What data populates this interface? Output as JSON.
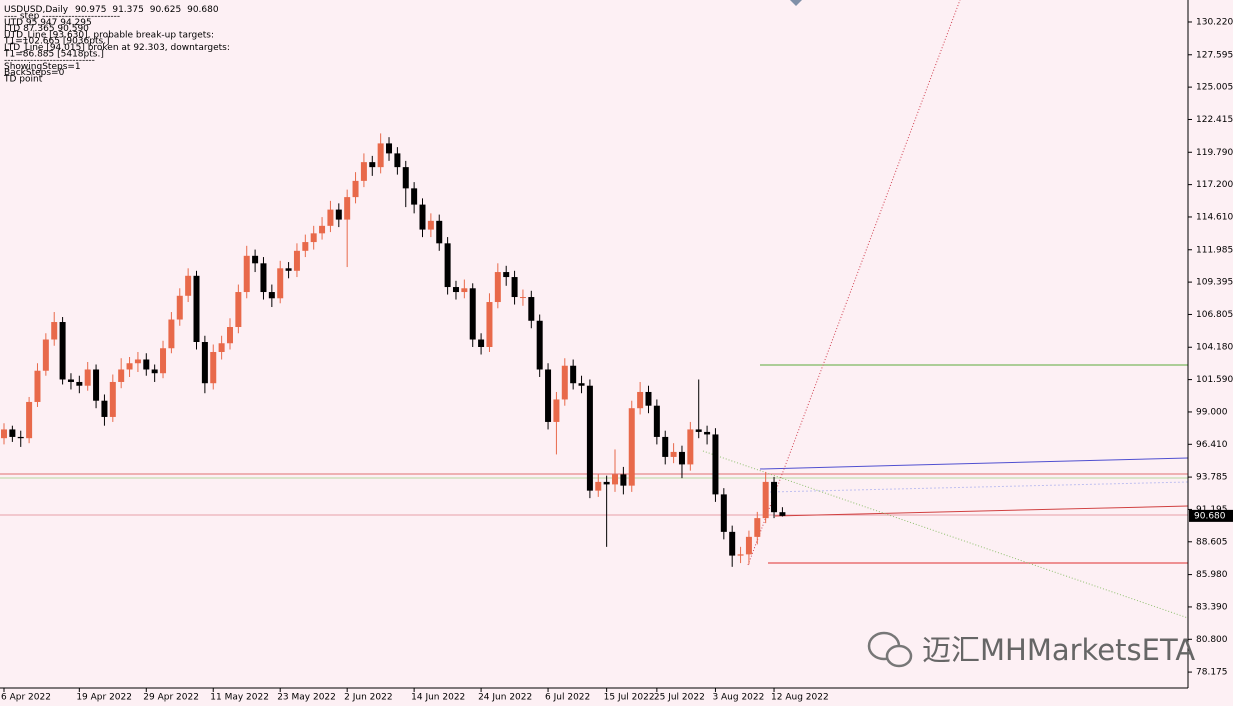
{
  "header": {
    "symbol": "USDUSD,Daily",
    "ohlc": [
      "90.975",
      "91.375",
      "90.625",
      "90.680"
    ]
  },
  "indicator_text": [
    "---- step ------------------------",
    "UTD  95.947  94.295",
    "LTD  87.365  90.590",
    "UTD_Line [93.630], probable break-up targets:",
    "T1=102.665 [9036pts.]",
    "LTD_Line [94.015] broken at 92.303, downtargets:",
    "T1=86.885 [5418pts.]",
    "----------------------------",
    "ShowingSteps=1",
    "BackSteps=0",
    "TD point"
  ],
  "watermark": "迈汇MHMarketsETA",
  "chart_data": {
    "type": "candlestick",
    "categories": [
      "6 Apr 2022",
      null,
      null,
      null,
      null,
      null,
      null,
      null,
      null,
      "19 Apr 2022",
      null,
      null,
      null,
      null,
      null,
      null,
      null,
      "29 Apr 2022",
      null,
      null,
      null,
      null,
      null,
      null,
      null,
      "11 May 2022",
      null,
      null,
      null,
      null,
      null,
      null,
      null,
      "23 May 2022",
      null,
      null,
      null,
      null,
      null,
      null,
      null,
      "2 Jun 2022",
      null,
      null,
      null,
      null,
      null,
      null,
      null,
      "14 Jun 2022",
      null,
      null,
      null,
      null,
      null,
      null,
      null,
      "24 Jun 2022",
      null,
      null,
      null,
      null,
      null,
      null,
      null,
      "6 Jul 2022",
      null,
      null,
      null,
      null,
      null,
      null,
      "15 Jul 2022",
      null,
      null,
      null,
      null,
      null,
      "25 Jul 2022",
      null,
      null,
      null,
      null,
      null,
      null,
      "3 Aug 2022",
      null,
      null,
      null,
      null,
      null,
      null,
      "12 Aug 2022",
      null
    ],
    "open": [
      96.9,
      97.6,
      97.0,
      96.9,
      99.8,
      102.3,
      104.8,
      106.2,
      101.6,
      101.4,
      101.1,
      102.4,
      99.9,
      98.6,
      101.4,
      102.4,
      102.9,
      103.2,
      102.4,
      102.1,
      104.1,
      106.4,
      108.3,
      109.9,
      104.6,
      101.3,
      103.8,
      104.5,
      105.8,
      108.6,
      111.5,
      110.9,
      108.6,
      108.1,
      110.5,
      110.3,
      111.9,
      112.6,
      113.3,
      113.9,
      115.2,
      114.4,
      116.2,
      117.5,
      119.0,
      118.6,
      120.5,
      119.7,
      118.6,
      116.9,
      115.6,
      113.6,
      114.3,
      112.5,
      109.0,
      108.6,
      108.9,
      104.8,
      104.2,
      107.8,
      110.2,
      109.8,
      108.2,
      108.2,
      106.3,
      102.4,
      98.2,
      100.0,
      102.7,
      101.3,
      101.1,
      92.7,
      93.4,
      93.2,
      94.0,
      93.1,
      99.3,
      100.6,
      99.5,
      97.0,
      95.4,
      95.8,
      94.8,
      97.6,
      97.4,
      97.2,
      92.4,
      89.4,
      87.5,
      87.6,
      89.0,
      90.5,
      93.4,
      90.975
    ],
    "high": [
      98.1,
      97.9,
      97.5,
      100.2,
      102.9,
      105.3,
      107.0,
      106.6,
      102.1,
      101.9,
      103.0,
      102.8,
      100.4,
      102.0,
      103.3,
      103.4,
      103.8,
      103.7,
      102.8,
      104.7,
      107.0,
      108.9,
      110.5,
      110.3,
      105.1,
      104.4,
      105.1,
      106.5,
      109.2,
      112.3,
      112.0,
      111.4,
      109.2,
      111.1,
      111.0,
      112.5,
      113.2,
      113.9,
      114.6,
      115.9,
      115.7,
      116.8,
      118.2,
      119.7,
      119.5,
      121.3,
      121.0,
      120.2,
      119.1,
      117.4,
      116.1,
      114.9,
      114.8,
      113.0,
      109.5,
      109.6,
      109.3,
      105.3,
      108.5,
      110.9,
      110.7,
      110.3,
      108.8,
      108.7,
      106.8,
      102.9,
      100.6,
      103.3,
      103.2,
      101.9,
      101.6,
      94.0,
      93.9,
      96.0,
      94.6,
      99.9,
      101.4,
      101.1,
      100.0,
      97.5,
      96.5,
      96.3,
      98.2,
      101.6,
      97.9,
      97.7,
      92.9,
      89.9,
      88.2,
      89.5,
      91.0,
      94.2,
      93.8,
      91.375
    ],
    "low": [
      96.4,
      96.6,
      96.2,
      96.5,
      99.4,
      101.9,
      104.3,
      101.2,
      100.8,
      100.5,
      100.7,
      99.3,
      97.9,
      98.2,
      100.9,
      101.8,
      102.2,
      101.9,
      101.4,
      101.7,
      103.7,
      105.9,
      107.8,
      104.0,
      100.5,
      100.8,
      103.2,
      104.0,
      105.3,
      108.1,
      110.2,
      108.0,
      107.4,
      107.7,
      109.7,
      109.8,
      111.4,
      112.0,
      112.8,
      113.4,
      113.8,
      110.6,
      115.7,
      117.0,
      117.9,
      118.1,
      119.1,
      118.0,
      115.4,
      114.9,
      113.0,
      113.0,
      111.9,
      108.4,
      108.0,
      108.1,
      104.2,
      103.6,
      103.8,
      107.3,
      109.1,
      107.6,
      107.5,
      105.7,
      101.8,
      97.6,
      95.6,
      99.5,
      100.8,
      100.5,
      92.1,
      92.2,
      88.2,
      92.6,
      92.4,
      92.6,
      98.8,
      98.9,
      96.4,
      94.8,
      94.9,
      93.7,
      94.3,
      96.9,
      96.4,
      91.8,
      88.8,
      86.6,
      86.9,
      86.8,
      88.4,
      90.1,
      90.5,
      90.625
    ],
    "close": [
      97.6,
      97.0,
      96.9,
      99.8,
      102.3,
      104.8,
      106.2,
      101.6,
      101.4,
      101.1,
      102.4,
      99.9,
      98.6,
      101.4,
      102.4,
      102.9,
      103.2,
      102.4,
      102.1,
      104.1,
      106.4,
      108.3,
      109.9,
      104.6,
      101.3,
      103.8,
      104.5,
      105.8,
      108.6,
      111.5,
      110.9,
      108.6,
      108.1,
      110.5,
      110.3,
      111.9,
      112.6,
      113.3,
      113.9,
      115.2,
      114.4,
      116.2,
      117.5,
      119.0,
      118.6,
      120.5,
      119.7,
      118.6,
      116.9,
      115.6,
      113.6,
      114.3,
      112.5,
      109.0,
      108.6,
      108.9,
      104.8,
      104.2,
      107.8,
      110.2,
      109.8,
      108.2,
      108.2,
      106.3,
      102.4,
      98.2,
      100.0,
      102.7,
      101.3,
      101.1,
      92.7,
      93.4,
      93.2,
      94.0,
      93.1,
      99.3,
      100.6,
      99.5,
      97.0,
      95.4,
      95.8,
      94.8,
      97.6,
      97.4,
      97.2,
      92.4,
      89.4,
      87.5,
      87.6,
      89.0,
      90.5,
      93.4,
      90.975,
      90.68
    ],
    "up_color": "#e8694a",
    "down_color": "#000000",
    "ylim": [
      76.9,
      131.98
    ],
    "yticks": [
      {
        "value": 78.175,
        "label": "78.175"
      },
      {
        "value": 80.8,
        "label": "80.800"
      },
      {
        "value": 83.39,
        "label": "83.390"
      },
      {
        "value": 85.98,
        "label": "85.980"
      },
      {
        "value": 88.605,
        "label": "88.605"
      },
      {
        "value": 91.195,
        "label": "91.195"
      },
      {
        "value": 93.785,
        "label": "93.785"
      },
      {
        "value": 96.41,
        "label": "96.410"
      },
      {
        "value": 99,
        "label": "99.000"
      },
      {
        "value": 101.59,
        "label": "101.590"
      },
      {
        "value": 104.18,
        "label": "104.180"
      },
      {
        "value": 106.805,
        "label": "106.805"
      },
      {
        "value": 109.395,
        "label": "109.395"
      },
      {
        "value": 111.985,
        "label": "111.985"
      },
      {
        "value": 114.61,
        "label": "114.610"
      },
      {
        "value": 117.2,
        "label": "117.200"
      },
      {
        "value": 119.79,
        "label": "119.790"
      },
      {
        "value": 122.415,
        "label": "122.415"
      },
      {
        "value": 125.005,
        "label": "125.005"
      },
      {
        "value": 127.595,
        "label": "127.595"
      },
      {
        "value": 130.22,
        "label": "130.220"
      }
    ],
    "current_price": {
      "value": 90.68,
      "label": "90.680"
    }
  }
}
